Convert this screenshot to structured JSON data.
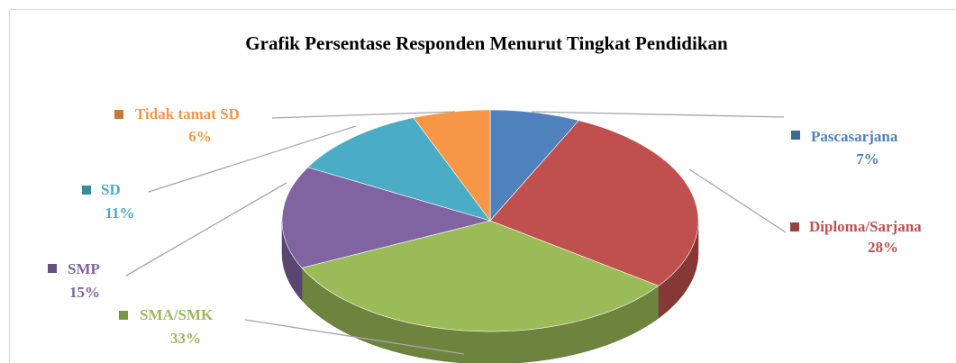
{
  "chart_data": {
    "type": "pie",
    "title": "Grafik Persentase Responden Menurut Tingkat Pendidikan",
    "categories": [
      "Pascasarjana",
      "Diploma/Sarjana",
      "SMA/SMK",
      "SMP",
      "SD",
      "Tidak tamat SD"
    ],
    "values": [
      7,
      28,
      33,
      15,
      11,
      6
    ],
    "value_labels": [
      "7%",
      "28%",
      "33%",
      "15%",
      "11%",
      "6%"
    ],
    "colors": [
      "#4f81bd",
      "#c0504d",
      "#9bbb59",
      "#8064a2",
      "#4bacc6",
      "#f79646"
    ]
  }
}
